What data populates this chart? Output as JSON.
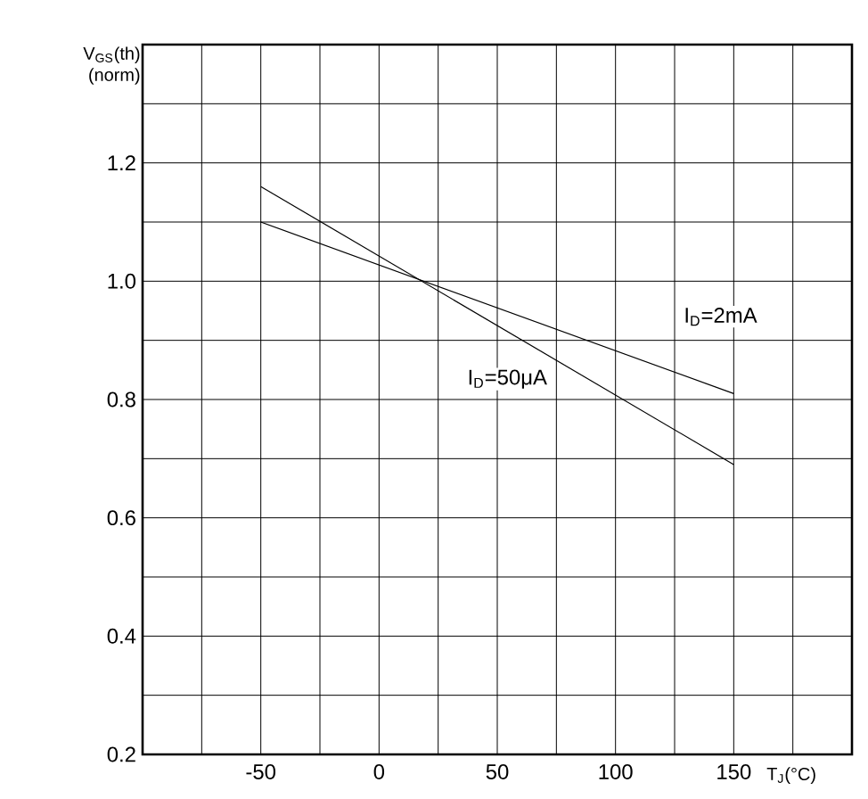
{
  "chart_data": {
    "type": "line",
    "xlabel": "T$_{J}$(°C)",
    "ylabel": "V$_{GS}$(th) (norm)",
    "xlim": [
      -100,
      200
    ],
    "ylim": [
      0.2,
      1.4
    ],
    "xticks": [
      {
        "value": -100,
        "label": null
      },
      {
        "value": -75,
        "label": null
      },
      -50,
      {
        "value": -25,
        "label": null
      },
      0,
      {
        "value": 25,
        "label": null
      },
      50,
      {
        "value": 75,
        "label": null
      },
      100,
      {
        "value": 125,
        "label": null
      },
      150,
      {
        "value": 175,
        "label": null
      },
      {
        "value": 200,
        "label": null
      }
    ],
    "yticks": [
      {
        "value": 0.2,
        "label": "0.2"
      },
      {
        "value": 0.3,
        "label": null
      },
      {
        "value": 0.4,
        "label": "0.4"
      },
      {
        "value": 0.5,
        "label": null
      },
      {
        "value": 0.6,
        "label": "0.6"
      },
      {
        "value": 0.7,
        "label": null
      },
      {
        "value": 0.8,
        "label": "0.8"
      },
      {
        "value": 0.9,
        "label": null
      },
      {
        "value": 1.0,
        "label": "1.0"
      },
      {
        "value": 1.1,
        "label": null
      },
      {
        "value": 1.2,
        "label": "1.2"
      },
      {
        "value": 1.3,
        "label": null
      },
      {
        "value": 1.4,
        "label": null
      }
    ],
    "x": [
      -50,
      150
    ],
    "grid": true,
    "marker": "none",
    "line_style": "solid",
    "series": [
      {
        "color": "#000000",
        "values": [
          1.1,
          0.81
        ]
      },
      {
        "color": "#000000",
        "values": [
          1.16,
          0.69
        ]
      }
    ],
    "annotations": [
      {
        "text": "I$_{D}$=2mA",
        "x": 125,
        "y": 0.855
      },
      {
        "text": "I$_{D}$=50μA",
        "x": 75,
        "y": 0.866
      }
    ]
  }
}
